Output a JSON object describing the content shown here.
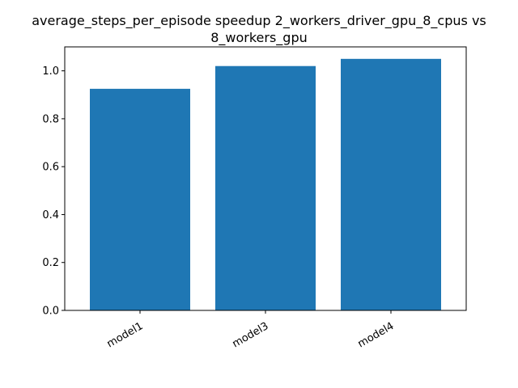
{
  "chart_data": {
    "type": "bar",
    "title_line1": "average_steps_per_episode speedup 2_workers_driver_gpu_8_cpus vs",
    "title_line2": "8_workers_gpu",
    "categories": [
      "model1",
      "model3",
      "model4"
    ],
    "values": [
      0.925,
      1.02,
      1.05
    ],
    "xlabel": "",
    "ylabel": "",
    "ylim": [
      0,
      1.1
    ],
    "yticks": [
      0.0,
      0.2,
      0.4,
      0.6,
      0.8,
      1.0
    ],
    "ytick_labels": [
      "0.0",
      "0.2",
      "0.4",
      "0.6",
      "0.8",
      "1.0"
    ],
    "bar_color": "#1f77b4",
    "grid": false,
    "legend": "none"
  }
}
